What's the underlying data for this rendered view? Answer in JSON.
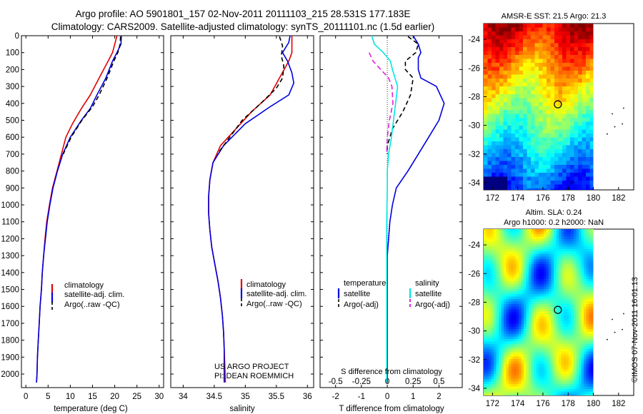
{
  "header": {
    "line1": "Argo profile: AO 5901801_157 02-Nov-2011 20111103_215 28.531S 177.183E",
    "line2": "Climatology: CARS2009. Satellite-adjusted climatology: synTS_20111101.nc (1.5d earlier)"
  },
  "colors": {
    "climatology": "#dd0000",
    "satellite": "#0000dd",
    "argo": "#000000",
    "satellite_s": "#00e5e5",
    "argo_s": "#e020e0"
  },
  "panels": {
    "temperature": {
      "xlabel": "temperature (deg C)",
      "legend": [
        "climatology",
        "satellite-adj. clim.",
        "Argo(..raw -QC)"
      ]
    },
    "salinity": {
      "xlabel": "salinity",
      "legend": [
        "climatology",
        "satellite-adj. clim.",
        "Argo(..raw -QC)"
      ],
      "credit1": "US ARGO PROJECT",
      "credit2": "PI: DEAN ROEMMICH"
    },
    "difference": {
      "xlabel": "T difference from climatology",
      "xlabel_s": "S difference from climatology",
      "legend_t_title": "temperature",
      "legend_s_title": "salinity",
      "legend_t": [
        "satellite",
        "Argo(-adj)"
      ],
      "legend_s": [
        "satellite",
        "Argo(-adj)"
      ]
    },
    "maps": {
      "sst_title": "AMSR-E SST: 21.5 Argo: 21.3",
      "sla_title1": "Altim. SLA: 0.24",
      "sla_title2": "Argo h1000: 0.2 h2000: NaN",
      "lon_ticks": [
        "172",
        "174",
        "176",
        "178",
        "180",
        "182"
      ],
      "lat_ticks": [
        "-24",
        "-26",
        "-28",
        "-30",
        "-32",
        "-34"
      ],
      "argo_lon": 177.183,
      "argo_lat": -28.531
    }
  },
  "footer": {
    "stamp": "©IMOS 07-Nov-2011 16:01:13"
  },
  "chart_data": [
    {
      "type": "line",
      "title": "",
      "xlabel": "temperature (deg C)",
      "ylabel": "",
      "xlim": [
        -1,
        31
      ],
      "ylim": [
        2080,
        0
      ],
      "xticks": [
        0,
        5,
        10,
        15,
        20,
        25,
        30
      ],
      "yticks": [
        0,
        100,
        200,
        300,
        400,
        500,
        600,
        700,
        800,
        900,
        1000,
        1100,
        1200,
        1300,
        1400,
        1500,
        1600,
        1700,
        1800,
        1900,
        2000
      ],
      "series": [
        {
          "name": "climatology",
          "color": "#dd0000",
          "dash": "",
          "points": [
            [
              20.5,
              0
            ],
            [
              20.0,
              50
            ],
            [
              19.5,
              100
            ],
            [
              18.5,
              150
            ],
            [
              16.5,
              250
            ],
            [
              14.5,
              350
            ],
            [
              12.5,
              430
            ],
            [
              10.5,
              520
            ],
            [
              9.0,
              600
            ],
            [
              8.0,
              700
            ],
            [
              7.0,
              800
            ],
            [
              6.0,
              900
            ],
            [
              5.3,
              1000
            ],
            [
              4.7,
              1100
            ],
            [
              4.3,
              1200
            ],
            [
              4.0,
              1300
            ],
            [
              3.7,
              1400
            ],
            [
              3.5,
              1500
            ],
            [
              3.2,
              1600
            ],
            [
              3.0,
              1700
            ],
            [
              2.8,
              1800
            ],
            [
              2.6,
              1900
            ],
            [
              2.5,
              2000
            ],
            [
              2.4,
              2050
            ]
          ]
        },
        {
          "name": "satellite-adj. clim.",
          "color": "#0000dd",
          "dash": "",
          "points": [
            [
              21.5,
              0
            ],
            [
              21.4,
              50
            ],
            [
              20.5,
              100
            ],
            [
              19.5,
              150
            ],
            [
              18.0,
              250
            ],
            [
              16.0,
              350
            ],
            [
              14.5,
              430
            ],
            [
              12.5,
              500
            ],
            [
              10.0,
              600
            ],
            [
              8.3,
              700
            ],
            [
              7.1,
              800
            ],
            [
              6.1,
              900
            ],
            [
              5.4,
              1000
            ],
            [
              4.8,
              1100
            ],
            [
              4.4,
              1200
            ],
            [
              4.0,
              1300
            ],
            [
              3.7,
              1400
            ],
            [
              3.5,
              1500
            ],
            [
              3.2,
              1600
            ],
            [
              3.0,
              1700
            ],
            [
              2.8,
              1800
            ],
            [
              2.6,
              1900
            ],
            [
              2.5,
              2000
            ],
            [
              2.4,
              2050
            ]
          ]
        },
        {
          "name": "Argo(..raw -QC)",
          "color": "#000000",
          "dash": "6,4",
          "points": [
            [
              21.3,
              5
            ],
            [
              21.2,
              50
            ],
            [
              20.7,
              100
            ],
            [
              19.8,
              150
            ],
            [
              18.3,
              250
            ],
            [
              16.5,
              350
            ],
            [
              15.0,
              420
            ],
            [
              12.6,
              500
            ],
            [
              10.2,
              600
            ],
            [
              8.4,
              700
            ]
          ]
        }
      ]
    },
    {
      "type": "line",
      "title": "",
      "xlabel": "salinity",
      "ylabel": "",
      "xlim": [
        33.8,
        36.1
      ],
      "ylim": [
        2080,
        0
      ],
      "xticks": [
        34,
        34.5,
        35,
        35.5,
        36
      ],
      "series": [
        {
          "name": "climatology",
          "color": "#dd0000",
          "dash": "",
          "points": [
            [
              35.75,
              0
            ],
            [
              35.75,
              50
            ],
            [
              35.75,
              100
            ],
            [
              35.7,
              150
            ],
            [
              35.55,
              250
            ],
            [
              35.4,
              350
            ],
            [
              35.1,
              450
            ],
            [
              34.85,
              550
            ],
            [
              34.6,
              650
            ],
            [
              34.48,
              750
            ],
            [
              34.43,
              850
            ],
            [
              34.41,
              950
            ],
            [
              34.41,
              1050
            ],
            [
              34.43,
              1150
            ],
            [
              34.46,
              1250
            ],
            [
              34.51,
              1350
            ],
            [
              34.56,
              1450
            ],
            [
              34.6,
              1550
            ],
            [
              34.63,
              1650
            ],
            [
              34.65,
              1750
            ],
            [
              34.66,
              1850
            ],
            [
              34.67,
              1950
            ],
            [
              34.68,
              2050
            ]
          ]
        },
        {
          "name": "satellite-adj. clim.",
          "color": "#0000dd",
          "dash": "",
          "points": [
            [
              35.72,
              0
            ],
            [
              35.7,
              40
            ],
            [
              35.6,
              100
            ],
            [
              35.68,
              150
            ],
            [
              35.75,
              220
            ],
            [
              35.78,
              280
            ],
            [
              35.7,
              350
            ],
            [
              35.4,
              420
            ],
            [
              35.0,
              520
            ],
            [
              34.65,
              650
            ],
            [
              34.48,
              750
            ],
            [
              34.43,
              850
            ],
            [
              34.41,
              950
            ],
            [
              34.41,
              1050
            ],
            [
              34.43,
              1150
            ],
            [
              34.46,
              1250
            ],
            [
              34.51,
              1350
            ],
            [
              34.56,
              1450
            ],
            [
              34.6,
              1550
            ],
            [
              34.63,
              1650
            ],
            [
              34.65,
              1750
            ],
            [
              34.66,
              1850
            ],
            [
              34.66,
              1950
            ],
            [
              34.66,
              2050
            ]
          ]
        },
        {
          "name": "Argo(..raw -QC)",
          "color": "#000000",
          "dash": "6,4",
          "points": [
            [
              35.55,
              5
            ],
            [
              35.6,
              60
            ],
            [
              35.58,
              120
            ],
            [
              35.62,
              180
            ],
            [
              35.6,
              250
            ],
            [
              35.5,
              310
            ],
            [
              35.25,
              400
            ],
            [
              34.95,
              500
            ],
            [
              34.75,
              600
            ],
            [
              34.55,
              700
            ]
          ]
        }
      ]
    },
    {
      "type": "line",
      "title": "",
      "xlabel": "T difference from climatology",
      "ylabel": "",
      "xlim": [
        -2.6,
        2.9
      ],
      "ylim": [
        2080,
        0
      ],
      "xticks": [
        -2,
        -1,
        0,
        1,
        2
      ],
      "xticks_s": [
        "-0.5",
        "-0.25",
        "0",
        "0.25",
        "0.5"
      ],
      "series": [
        {
          "name": "satellite",
          "color": "#0000dd",
          "dash": "",
          "kind": "T",
          "points": [
            [
              1.0,
              0
            ],
            [
              1.2,
              50
            ],
            [
              1.3,
              100
            ],
            [
              1.2,
              130
            ],
            [
              1.2,
              200
            ],
            [
              1.3,
              250
            ],
            [
              1.9,
              300
            ],
            [
              2.2,
              400
            ],
            [
              2.0,
              500
            ],
            [
              1.6,
              600
            ],
            [
              1.2,
              700
            ],
            [
              0.8,
              800
            ],
            [
              0.35,
              900
            ],
            [
              0.2,
              1000
            ],
            [
              0.1,
              1100
            ],
            [
              0.05,
              1200
            ],
            [
              0.0,
              1300
            ],
            [
              0.0,
              1400
            ],
            [
              0.0,
              1500
            ],
            [
              0.0,
              1700
            ],
            [
              0.0,
              2000
            ],
            [
              0.0,
              2050
            ]
          ]
        },
        {
          "name": "Argo(-adj)",
          "color": "#000000",
          "dash": "6,4",
          "kind": "T",
          "points": [
            [
              0.8,
              5
            ],
            [
              1.2,
              50
            ],
            [
              1.1,
              100
            ],
            [
              0.7,
              150
            ],
            [
              0.7,
              200
            ],
            [
              1.0,
              250
            ],
            [
              0.9,
              350
            ],
            [
              0.6,
              450
            ],
            [
              0.2,
              550
            ],
            [
              0.0,
              650
            ],
            [
              0.0,
              700
            ]
          ]
        },
        {
          "name": "satellite",
          "color": "#00e5e5",
          "dash": "",
          "kind": "S",
          "points": [
            [
              -0.6,
              0
            ],
            [
              -0.5,
              50
            ],
            [
              -0.15,
              100
            ],
            [
              0.12,
              150
            ],
            [
              0.2,
              200
            ],
            [
              0.3,
              250
            ],
            [
              0.4,
              300
            ],
            [
              0.32,
              400
            ],
            [
              0.24,
              500
            ],
            [
              0.16,
              600
            ],
            [
              0.05,
              700
            ],
            [
              0.0,
              800
            ],
            [
              0.0,
              900
            ],
            [
              -0.02,
              1100
            ],
            [
              -0.02,
              1300
            ],
            [
              -0.02,
              1500
            ],
            [
              -0.02,
              2050
            ]
          ]
        },
        {
          "name": "Argo(-adj)",
          "color": "#e020e0",
          "dash": "7,4",
          "kind": "S",
          "points": [
            [
              -0.7,
              100
            ],
            [
              -0.55,
              150
            ],
            [
              -0.25,
              200
            ],
            [
              0.05,
              250
            ],
            [
              0.18,
              300
            ],
            [
              0.22,
              400
            ],
            [
              0.08,
              500
            ],
            [
              0.0,
              600
            ],
            [
              -0.02,
              700
            ]
          ]
        }
      ]
    }
  ]
}
